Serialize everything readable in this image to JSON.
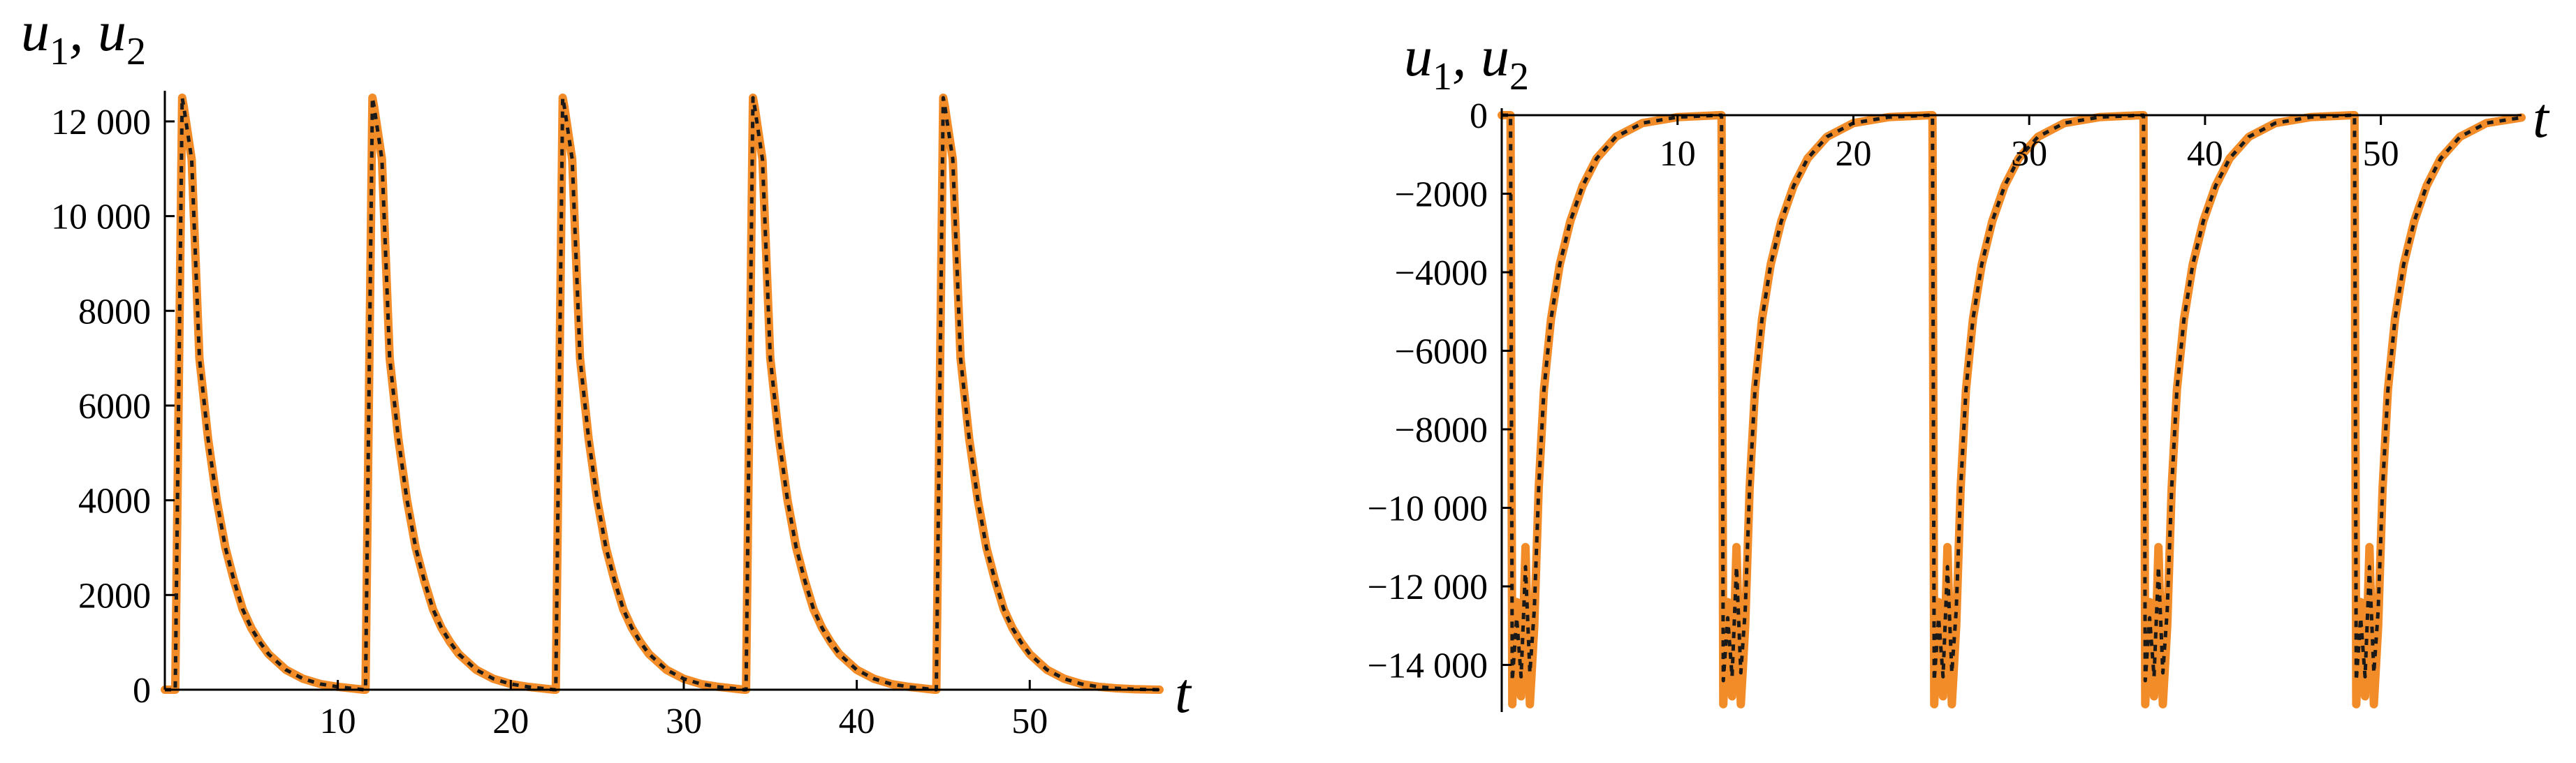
{
  "colors": {
    "series1": "#F28C28",
    "series2": "#1a1a1a"
  },
  "chart_data": [
    {
      "type": "line",
      "xlabel": "t",
      "ylabel": {
        "var1": "u",
        "sub1": "1",
        "sep": ", ",
        "var2": "u",
        "sub2": "2"
      },
      "xlim": [
        0,
        57.5
      ],
      "ylim": [
        0,
        12500
      ],
      "x_ticks": [
        10,
        20,
        30,
        40,
        50
      ],
      "x_tick_labels": [
        "10",
        "20",
        "30",
        "40",
        "50"
      ],
      "y_ticks": [
        0,
        2000,
        4000,
        6000,
        8000,
        10000,
        12000
      ],
      "y_tick_labels": [
        "0",
        "2000",
        "4000",
        "6000",
        "8000",
        "10 000",
        "12 000"
      ],
      "grid": false,
      "series": [
        {
          "style": "solid-orange",
          "x": [
            0,
            0.6,
            1.0,
            1.1,
            1.55,
            2,
            2.5,
            3,
            3.5,
            4,
            4.5,
            5,
            5.5,
            6,
            7,
            8,
            9,
            10,
            11.5,
            11.6,
            12.0,
            12.1,
            12.55,
            13,
            13.5,
            14,
            14.5,
            15,
            15.5,
            16,
            16.5,
            17,
            18,
            19,
            20,
            21,
            22.5,
            22.6,
            23.0,
            23.1,
            23.55,
            24,
            24.5,
            25,
            25.5,
            26,
            26.5,
            27,
            27.5,
            28,
            29,
            30,
            31,
            32,
            33.5,
            33.6,
            34.0,
            34.1,
            34.55,
            35,
            35.5,
            36,
            36.5,
            37,
            37.5,
            38,
            38.5,
            39,
            40,
            41,
            42,
            43,
            44.5,
            44.6,
            45.0,
            45.1,
            45.55,
            46,
            46.5,
            47,
            47.5,
            48,
            48.5,
            49,
            49.5,
            50,
            51,
            52,
            53,
            54,
            55,
            56,
            57.5
          ],
          "y": [
            0,
            0,
            12500,
            12300,
            11200,
            7000,
            5300,
            4000,
            3000,
            2300,
            1700,
            1300,
            1000,
            750,
            420,
            230,
            120,
            60,
            0,
            0,
            12500,
            12300,
            11200,
            7000,
            5300,
            4000,
            3000,
            2300,
            1700,
            1300,
            1000,
            750,
            420,
            230,
            120,
            60,
            0,
            0,
            12500,
            12300,
            11200,
            7000,
            5300,
            4000,
            3000,
            2300,
            1700,
            1300,
            1000,
            750,
            420,
            230,
            120,
            60,
            0,
            0,
            12500,
            12300,
            11200,
            7000,
            5300,
            4000,
            3000,
            2300,
            1700,
            1300,
            1000,
            750,
            420,
            230,
            120,
            60,
            0,
            0,
            12500,
            12300,
            11200,
            7000,
            5300,
            4000,
            3000,
            2300,
            1700,
            1300,
            1000,
            750,
            420,
            230,
            120,
            60,
            30,
            10,
            0
          ]
        },
        {
          "style": "dotted-black",
          "x": [
            0,
            0.6,
            1.0,
            1.1,
            1.55,
            2,
            2.5,
            3,
            3.5,
            4,
            4.5,
            5,
            5.5,
            6,
            7,
            8,
            9,
            10,
            11.5,
            11.6,
            12.0,
            12.1,
            12.55,
            13,
            13.5,
            14,
            14.5,
            15,
            15.5,
            16,
            16.5,
            17,
            18,
            19,
            20,
            21,
            22.5,
            22.6,
            23.0,
            23.1,
            23.55,
            24,
            24.5,
            25,
            25.5,
            26,
            26.5,
            27,
            27.5,
            28,
            29,
            30,
            31,
            32,
            33.5,
            33.6,
            34.0,
            34.1,
            34.55,
            35,
            35.5,
            36,
            36.5,
            37,
            37.5,
            38,
            38.5,
            39,
            40,
            41,
            42,
            43,
            44.5,
            44.6,
            45.0,
            45.1,
            45.55,
            46,
            46.5,
            47,
            47.5,
            48,
            48.5,
            49,
            49.5,
            50,
            51,
            52,
            53,
            54,
            55,
            56,
            57.5
          ],
          "y": [
            0,
            0,
            12500,
            12300,
            11200,
            7000,
            5300,
            4000,
            3000,
            2300,
            1700,
            1300,
            1000,
            750,
            420,
            230,
            120,
            60,
            0,
            0,
            12500,
            12300,
            11200,
            7000,
            5300,
            4000,
            3000,
            2300,
            1700,
            1300,
            1000,
            750,
            420,
            230,
            120,
            60,
            0,
            0,
            12500,
            12300,
            11200,
            7000,
            5300,
            4000,
            3000,
            2300,
            1700,
            1300,
            1000,
            750,
            420,
            230,
            120,
            60,
            0,
            0,
            12500,
            12300,
            11200,
            7000,
            5300,
            4000,
            3000,
            2300,
            1700,
            1300,
            1000,
            750,
            420,
            230,
            120,
            60,
            0,
            0,
            12500,
            12300,
            11200,
            7000,
            5300,
            4000,
            3000,
            2300,
            1700,
            1300,
            1000,
            750,
            420,
            230,
            120,
            60,
            30,
            10,
            0
          ]
        }
      ]
    },
    {
      "type": "line",
      "xlabel": "t",
      "ylabel": {
        "var1": "u",
        "sub1": "1",
        "sep": ", ",
        "var2": "u",
        "sub2": "2"
      },
      "xlim": [
        0,
        58
      ],
      "ylim": [
        -15200,
        0
      ],
      "x_ticks": [
        10,
        20,
        30,
        40,
        50
      ],
      "x_tick_labels": [
        "10",
        "20",
        "30",
        "40",
        "50"
      ],
      "y_ticks": [
        0,
        -2000,
        -4000,
        -6000,
        -8000,
        -10000,
        -12000,
        -14000
      ],
      "y_tick_labels": [
        "0",
        "−2000",
        "−4000",
        "−6000",
        "−8000",
        "−10 000",
        "−12 000",
        "−14 000"
      ],
      "grid": false,
      "series": [
        {
          "style": "solid-orange",
          "x": [
            0,
            0.5,
            0.6,
            0.85,
            1.1,
            1.35,
            1.6,
            1.85,
            2.1,
            2.4,
            2.8,
            3.3,
            3.9,
            4.6,
            5.4,
            6.5,
            8,
            10,
            12.4,
            12.5,
            12.6,
            12.85,
            13.1,
            13.35,
            13.6,
            13.85,
            14.1,
            14.4,
            14.8,
            15.3,
            15.9,
            16.6,
            17.4,
            18.5,
            20,
            22,
            24.4,
            24.5,
            24.6,
            24.85,
            25.1,
            25.35,
            25.6,
            25.85,
            26.1,
            26.4,
            26.8,
            27.3,
            27.9,
            28.6,
            29.4,
            30.5,
            32,
            34,
            36.4,
            36.5,
            36.6,
            36.85,
            37.1,
            37.35,
            37.6,
            37.85,
            38.1,
            38.4,
            38.8,
            39.3,
            39.9,
            40.6,
            41.4,
            42.5,
            44,
            46,
            48.4,
            48.5,
            48.6,
            48.85,
            49.1,
            49.35,
            49.6,
            49.85,
            50.1,
            50.4,
            50.8,
            51.3,
            51.9,
            52.6,
            53.4,
            54.5,
            56,
            58
          ],
          "y": [
            0,
            0,
            -15000,
            -12400,
            -14800,
            -11000,
            -15000,
            -13000,
            -9500,
            -7000,
            -5200,
            -3800,
            -2700,
            -1800,
            -1100,
            -550,
            -200,
            -50,
            0,
            0,
            -15000,
            -12400,
            -14800,
            -11000,
            -15000,
            -13000,
            -9500,
            -7000,
            -5200,
            -3800,
            -2700,
            -1800,
            -1100,
            -550,
            -200,
            -50,
            0,
            0,
            -15000,
            -12400,
            -14800,
            -11000,
            -15000,
            -13000,
            -9500,
            -7000,
            -5200,
            -3800,
            -2700,
            -1800,
            -1100,
            -550,
            -200,
            -50,
            0,
            0,
            -15000,
            -12400,
            -14800,
            -11000,
            -15000,
            -13000,
            -9500,
            -7000,
            -5200,
            -3800,
            -2700,
            -1800,
            -1100,
            -550,
            -200,
            -50,
            0,
            0,
            -15000,
            -12400,
            -14800,
            -11000,
            -15000,
            -13000,
            -9500,
            -7000,
            -5200,
            -3800,
            -2700,
            -1800,
            -1100,
            -550,
            -200,
            -60
          ]
        },
        {
          "style": "dotted-black",
          "x": [
            0,
            0.5,
            0.6,
            0.85,
            1.1,
            1.35,
            1.6,
            1.85,
            2.1,
            2.4,
            2.8,
            3.3,
            3.9,
            4.6,
            5.4,
            6.5,
            8,
            10,
            12.4,
            12.5,
            12.6,
            12.85,
            13.1,
            13.35,
            13.6,
            13.85,
            14.1,
            14.4,
            14.8,
            15.3,
            15.9,
            16.6,
            17.4,
            18.5,
            20,
            22,
            24.4,
            24.5,
            24.6,
            24.85,
            25.1,
            25.35,
            25.6,
            25.85,
            26.1,
            26.4,
            26.8,
            27.3,
            27.9,
            28.6,
            29.4,
            30.5,
            32,
            34,
            36.4,
            36.5,
            36.6,
            36.85,
            37.1,
            37.35,
            37.6,
            37.85,
            38.1,
            38.4,
            38.8,
            39.3,
            39.9,
            40.6,
            41.4,
            42.5,
            44,
            46,
            48.4,
            48.5,
            48.6,
            48.85,
            49.1,
            49.35,
            49.6,
            49.85,
            50.1,
            50.4,
            50.8,
            51.3,
            51.9,
            52.6,
            53.4,
            54.5,
            56,
            58
          ],
          "y": [
            0,
            0,
            -14400,
            -12800,
            -14300,
            -11500,
            -14200,
            -12600,
            -9500,
            -7000,
            -5200,
            -3800,
            -2700,
            -1800,
            -1100,
            -550,
            -200,
            -50,
            0,
            0,
            -14400,
            -12800,
            -14300,
            -11500,
            -14200,
            -12600,
            -9500,
            -7000,
            -5200,
            -3800,
            -2700,
            -1800,
            -1100,
            -550,
            -200,
            -50,
            0,
            0,
            -14400,
            -12800,
            -14300,
            -11500,
            -14200,
            -12600,
            -9500,
            -7000,
            -5200,
            -3800,
            -2700,
            -1800,
            -1100,
            -550,
            -200,
            -50,
            0,
            0,
            -14400,
            -12800,
            -14300,
            -11500,
            -14200,
            -12600,
            -9500,
            -7000,
            -5200,
            -3800,
            -2700,
            -1800,
            -1100,
            -550,
            -200,
            -50,
            0,
            0,
            -14400,
            -12800,
            -14300,
            -11500,
            -14200,
            -12600,
            -9500,
            -7000,
            -5200,
            -3800,
            -2700,
            -1800,
            -1100,
            -550,
            -200,
            -60
          ]
        }
      ]
    }
  ]
}
